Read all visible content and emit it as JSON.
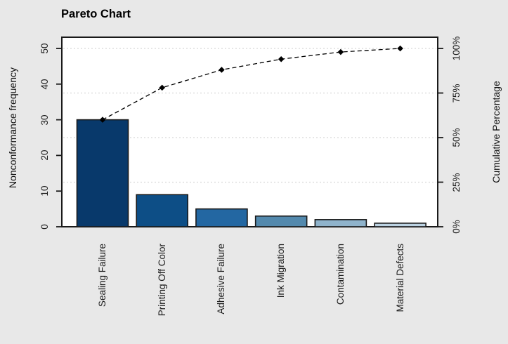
{
  "title": "Pareto Chart",
  "colors": {
    "background": "#e8e8e8",
    "plot_bg": "#ffffff",
    "frame": "#1a1a1a",
    "grid": "#d8d8d8",
    "line": "#000000",
    "marker": "#000000"
  },
  "chart_data": {
    "type": "bar",
    "subtype": "pareto-with-cumulative-line",
    "title": "Pareto Chart",
    "categories": [
      "Sealing Failure",
      "Printing Off Color",
      "Adhesive Failure",
      "Ink Migration",
      "Contamination",
      "Material Defects"
    ],
    "values": [
      30,
      9,
      5,
      3,
      2,
      1
    ],
    "cumulative_pct": [
      60,
      78,
      88,
      94,
      98,
      100
    ],
    "ylabel_left": "Nonconformance frequency",
    "ylabel_right": "Cumulative Percentage",
    "left_ticks": [
      0,
      10,
      20,
      30,
      40,
      50
    ],
    "right_ticks": [
      "0%",
      "25%",
      "50%",
      "75%",
      "100%"
    ],
    "right_tick_pcts": [
      0,
      25,
      50,
      75,
      100
    ],
    "ylim_left": [
      0,
      53
    ],
    "grid": "dashed horizontal lines at 25%, 50%, 75%, 100%",
    "legend": "none",
    "bar_colors": [
      "#08396b",
      "#0d4e86",
      "#2367a2",
      "#5389ad",
      "#8fb3cb",
      "#bcd3e3"
    ],
    "line_style": "dashed",
    "marker": "diamond"
  }
}
